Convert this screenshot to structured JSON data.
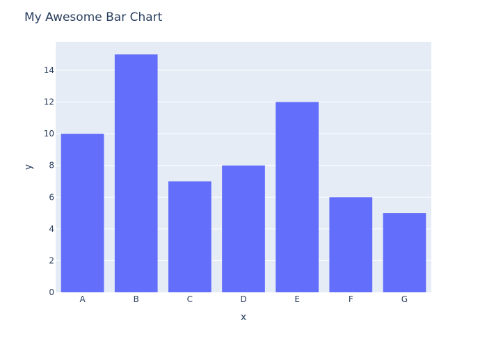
{
  "colors": {
    "plot_bg": "#e5ecf6",
    "grid": "#ffffff",
    "bar": "#636efa",
    "text": "#2a3f5f"
  },
  "chart_data": {
    "type": "bar",
    "title": "My Awesome Bar Chart",
    "xlabel": "x",
    "ylabel": "y",
    "categories": [
      "A",
      "B",
      "C",
      "D",
      "E",
      "F",
      "G"
    ],
    "values": [
      10,
      15,
      7,
      8,
      12,
      6,
      5
    ],
    "ylim": [
      0,
      15.8
    ],
    "yticks": [
      0,
      2,
      4,
      6,
      8,
      10,
      12,
      14
    ],
    "grid": true,
    "legend": "none"
  }
}
